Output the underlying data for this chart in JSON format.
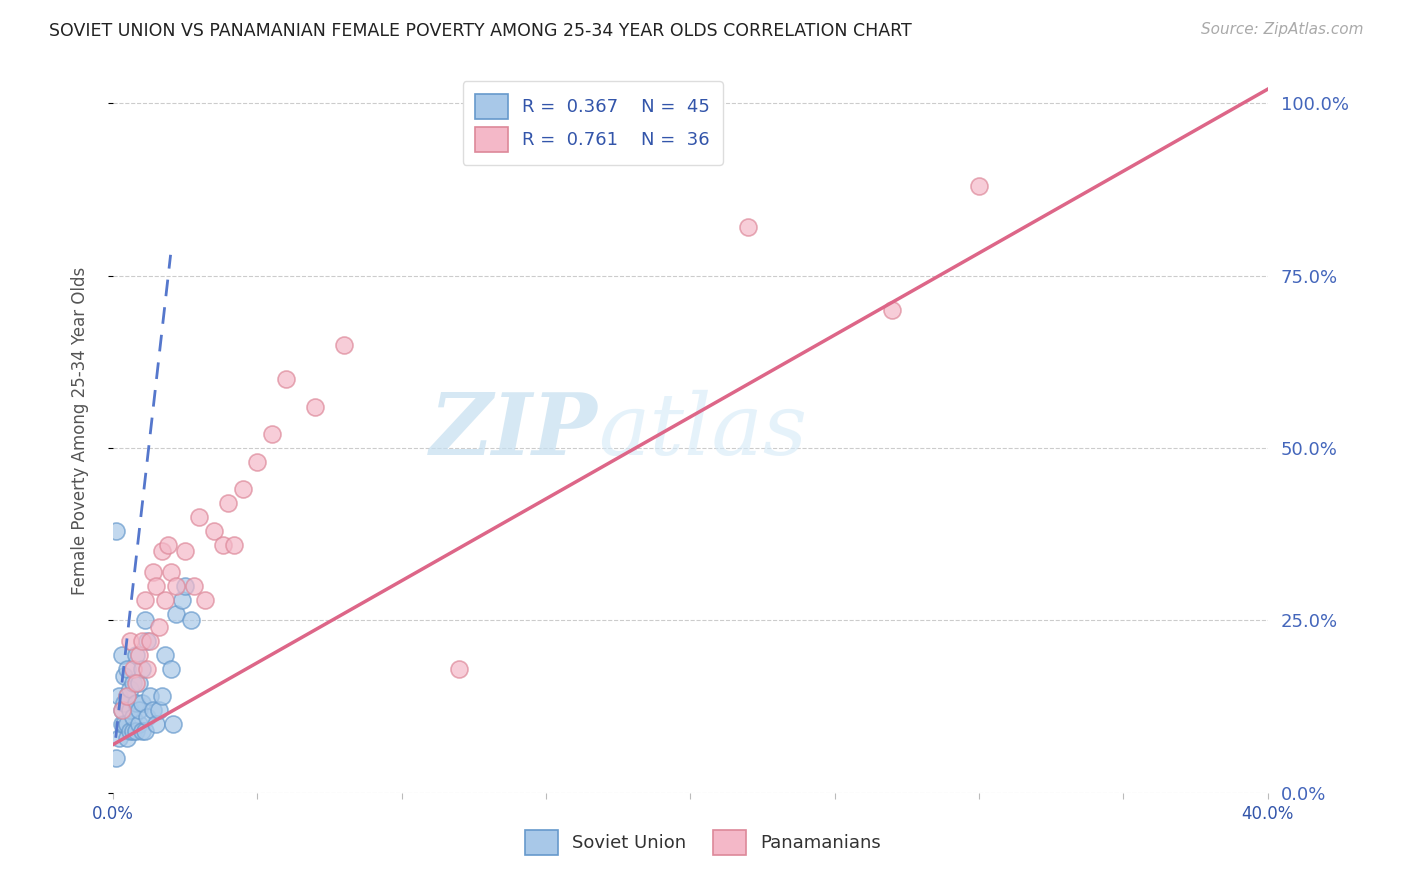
{
  "title": "SOVIET UNION VS PANAMANIAN FEMALE POVERTY AMONG 25-34 YEAR OLDS CORRELATION CHART",
  "source": "Source: ZipAtlas.com",
  "ylabel": "Female Poverty Among 25-34 Year Olds",
  "xlim": [
    0.0,
    0.4
  ],
  "ylim": [
    0.0,
    1.05
  ],
  "yticks": [
    0.0,
    0.25,
    0.5,
    0.75,
    1.0
  ],
  "yticklabels": [
    "0.0%",
    "25.0%",
    "50.0%",
    "75.0%",
    "100.0%"
  ],
  "watermark_zip": "ZIP",
  "watermark_atlas": "atlas",
  "soviet_color": "#a8c8e8",
  "soviet_edge_color": "#6699cc",
  "panama_color": "#f4b8c8",
  "panama_edge_color": "#dd8899",
  "soviet_line_color": "#5577cc",
  "panama_line_color": "#dd6688",
  "grid_color": "#cccccc",
  "title_color": "#222222",
  "axis_label_color": "#555555",
  "right_tick_color": "#4466bb",
  "legend_text_color": "#3355aa",
  "soviet_points_x": [
    0.001,
    0.002,
    0.002,
    0.003,
    0.003,
    0.003,
    0.004,
    0.004,
    0.004,
    0.005,
    0.005,
    0.005,
    0.005,
    0.006,
    0.006,
    0.006,
    0.007,
    0.007,
    0.007,
    0.008,
    0.008,
    0.008,
    0.009,
    0.009,
    0.009,
    0.01,
    0.01,
    0.01,
    0.011,
    0.011,
    0.012,
    0.012,
    0.013,
    0.014,
    0.015,
    0.016,
    0.017,
    0.018,
    0.02,
    0.021,
    0.022,
    0.024,
    0.025,
    0.027,
    0.001
  ],
  "soviet_points_y": [
    0.38,
    0.08,
    0.14,
    0.1,
    0.12,
    0.2,
    0.1,
    0.13,
    0.17,
    0.08,
    0.1,
    0.14,
    0.18,
    0.09,
    0.12,
    0.15,
    0.09,
    0.11,
    0.16,
    0.09,
    0.13,
    0.2,
    0.1,
    0.12,
    0.16,
    0.09,
    0.13,
    0.18,
    0.09,
    0.25,
    0.11,
    0.22,
    0.14,
    0.12,
    0.1,
    0.12,
    0.14,
    0.2,
    0.18,
    0.1,
    0.26,
    0.28,
    0.3,
    0.25,
    0.05
  ],
  "panama_points_x": [
    0.003,
    0.005,
    0.006,
    0.007,
    0.008,
    0.009,
    0.01,
    0.011,
    0.012,
    0.013,
    0.014,
    0.015,
    0.016,
    0.017,
    0.018,
    0.019,
    0.02,
    0.022,
    0.025,
    0.028,
    0.03,
    0.032,
    0.035,
    0.038,
    0.04,
    0.042,
    0.045,
    0.05,
    0.055,
    0.06,
    0.07,
    0.08,
    0.12,
    0.22,
    0.27,
    0.3
  ],
  "panama_points_y": [
    0.12,
    0.14,
    0.22,
    0.18,
    0.16,
    0.2,
    0.22,
    0.28,
    0.18,
    0.22,
    0.32,
    0.3,
    0.24,
    0.35,
    0.28,
    0.36,
    0.32,
    0.3,
    0.35,
    0.3,
    0.4,
    0.28,
    0.38,
    0.36,
    0.42,
    0.36,
    0.44,
    0.48,
    0.52,
    0.6,
    0.56,
    0.65,
    0.18,
    0.82,
    0.7,
    0.88
  ],
  "soviet_trend_x": [
    0.001,
    0.02
  ],
  "soviet_trend_y": [
    0.08,
    0.78
  ],
  "panama_trend_x": [
    0.0,
    0.4
  ],
  "panama_trend_y": [
    0.07,
    1.02
  ]
}
